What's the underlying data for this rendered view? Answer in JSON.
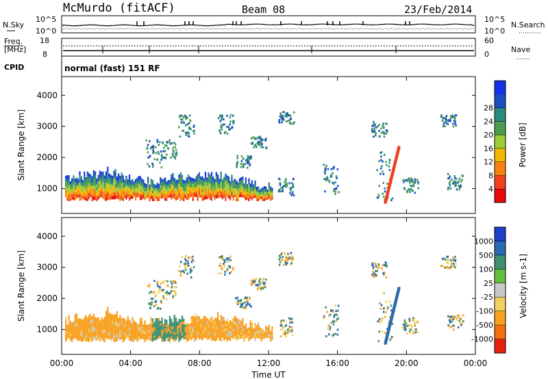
{
  "header": {
    "station": "McMurdo (fitACF)",
    "beam": "Beam 08",
    "date": "23/Feb/2014"
  },
  "chart_data": [
    {
      "type": "line",
      "panel": "noise",
      "left_label": "N.Sky",
      "right_label": "N.Search",
      "left_ticks": [
        "10^5",
        "10^0"
      ],
      "right_ticks": [
        "10^5",
        "10^0"
      ]
    },
    {
      "type": "line",
      "panel": "frequency",
      "left_label_line1": "Freq.",
      "left_label_line2": "[MHz]",
      "right_label": "Nave",
      "left_ticks": [
        "18",
        "8"
      ],
      "right_ticks": [
        "60",
        "0"
      ]
    },
    {
      "type": "table",
      "panel": "cpid",
      "label": "CPID",
      "value": "normal (fast) 151 RF"
    },
    {
      "type": "heatmap",
      "panel": "power",
      "ylabel": "Slant Range [km]",
      "y_ticks": [
        "1000",
        "2000",
        "3000",
        "4000"
      ],
      "ylim": [
        200,
        4600
      ],
      "x_ticks": [
        "00:00",
        "04:00",
        "08:00",
        "12:00",
        "16:00",
        "20:00",
        "00:00"
      ],
      "colorbar_label": "Power [dB]",
      "colorbar_ticks": [
        "4",
        "8",
        "12",
        "16",
        "20",
        "24",
        "28"
      ],
      "colorbar_colors": [
        "#1630e6",
        "#1e4fc0",
        "#2a8a7e",
        "#4f9c4f",
        "#9ccc3c",
        "#f2b800",
        "#f88010",
        "#f04020",
        "#e80808"
      ]
    },
    {
      "type": "heatmap",
      "panel": "velocity",
      "ylabel": "Slant Range [km]",
      "y_ticks": [
        "1000",
        "2000",
        "3000",
        "4000"
      ],
      "ylim": [
        200,
        4600
      ],
      "x_ticks": [
        "00:00",
        "04:00",
        "08:00",
        "12:00",
        "16:00",
        "20:00",
        "00:00"
      ],
      "xlabel": "Time UT",
      "colorbar_label": "Velocity [m s-1]",
      "colorbar_ticks": [
        "1000",
        "500",
        "100",
        "25",
        "-25",
        "-100",
        "-500",
        "-1000"
      ],
      "colorbar_colors": [
        "#1c3ec8",
        "#2a6ab0",
        "#3f8f70",
        "#66c040",
        "#c8c8c8",
        "#f0d060",
        "#f8a020",
        "#f47010",
        "#e82010"
      ]
    }
  ]
}
